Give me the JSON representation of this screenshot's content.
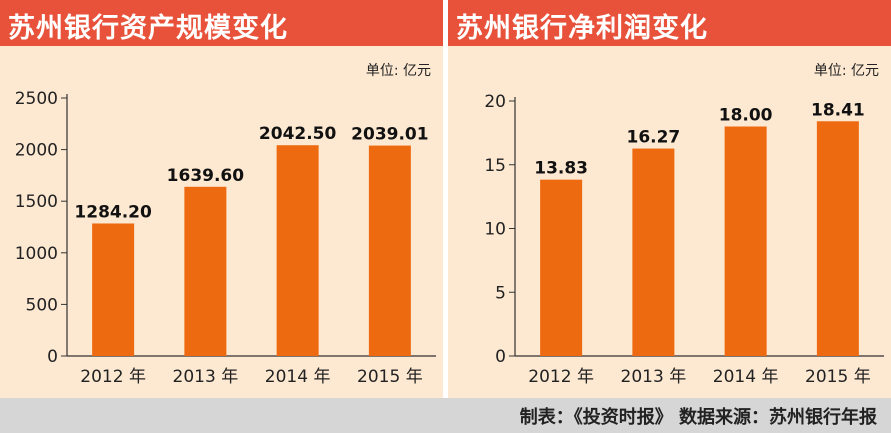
{
  "footer": {
    "source": "制表：《投资时报》 数据来源：苏州银行年报"
  },
  "chart_data": [
    {
      "type": "bar",
      "title": "苏州银行资产规模变化",
      "unit_label": "单位: 亿元",
      "categories": [
        "2012 年",
        "2013 年",
        "2014 年",
        "2015 年"
      ],
      "values": [
        1284.2,
        1639.6,
        2042.5,
        2039.01
      ],
      "value_labels": [
        "1284.20",
        "1639.60",
        "2042.50",
        "2039.01"
      ],
      "yticks": [
        0,
        500,
        1000,
        1500,
        2000,
        2500
      ],
      "ylim": [
        0,
        2500
      ],
      "bar_color": "#ee6a10"
    },
    {
      "type": "bar",
      "title": "苏州银行净利润变化",
      "unit_label": "单位: 亿元",
      "categories": [
        "2012 年",
        "2013 年",
        "2014 年",
        "2015 年"
      ],
      "values": [
        13.83,
        16.27,
        18.0,
        18.41
      ],
      "value_labels": [
        "13.83",
        "16.27",
        "18.00",
        "18.41"
      ],
      "yticks": [
        0,
        5,
        10,
        15,
        20
      ],
      "ylim": [
        0,
        20
      ],
      "bar_color": "#ee6a10"
    }
  ]
}
